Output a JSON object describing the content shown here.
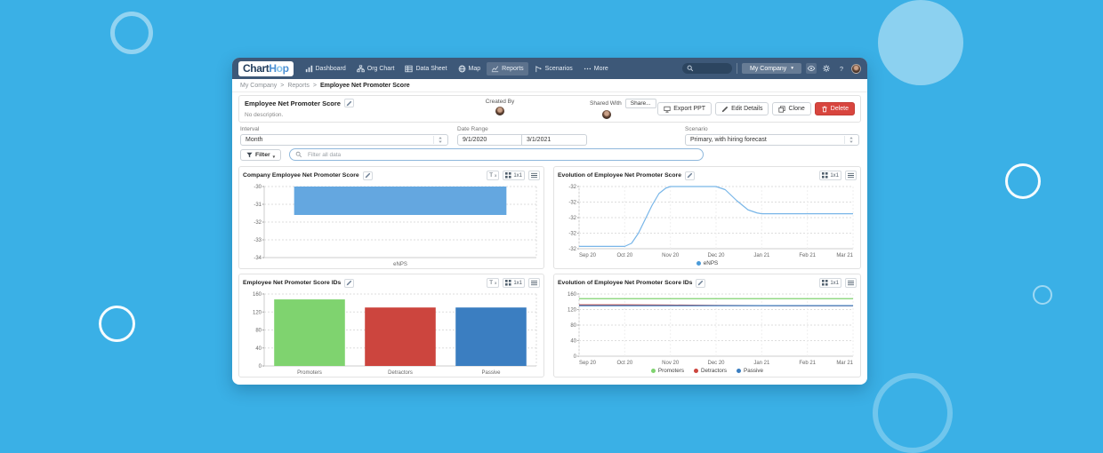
{
  "page": {
    "background_color": "#3ab0e6",
    "brand_navy": "#3d5878"
  },
  "navbar": {
    "logo_parts": [
      "Chart",
      "H",
      "o",
      "p"
    ],
    "items": [
      {
        "label": "Dashboard"
      },
      {
        "label": "Org Chart"
      },
      {
        "label": "Data Sheet"
      },
      {
        "label": "Map"
      },
      {
        "label": "Reports"
      },
      {
        "label": "Scenarios"
      },
      {
        "label": "More"
      }
    ],
    "company_menu": "My Company",
    "company_caret": "▾",
    "help_glyph": "?"
  },
  "breadcrumb": {
    "items": [
      "My Company",
      "Reports"
    ],
    "separator": ">",
    "current": "Employee Net Promoter Score"
  },
  "report_header": {
    "title": "Employee Net Promoter Score",
    "description": "No description.",
    "created_by_label": "Created By",
    "shared_with_label": "Shared With",
    "share_button": "Share...",
    "export_button": "Export PPT",
    "edit_button": "Edit Details",
    "clone_button": "Clone",
    "delete_button": "Delete",
    "delete_color": "#d8453e"
  },
  "controls": {
    "interval_label": "Interval",
    "interval_value": "Month",
    "date_range_label": "Date Range",
    "date_start": "9/1/2020",
    "date_end": "3/1/2021",
    "scenario_label": "Scenario",
    "scenario_value": "Primary, with hiring forecast",
    "filter_button": "Filter",
    "filter_caret": "▾",
    "filter_placeholder": "Filter all data"
  },
  "icons": {
    "tx_t": "T",
    "tx_x": "x"
  },
  "chart_data": [
    {
      "type": "bar",
      "title": "Company Employee Net Promoter Score",
      "toolbar": {
        "grid_label": "1x1",
        "has_label_filter": true
      },
      "ylim": [
        -30,
        -34
      ],
      "yticks": [
        {
          "v": -30,
          "label": "-30"
        },
        {
          "v": -31,
          "label": "-31"
        },
        {
          "v": -32,
          "label": "-32"
        },
        {
          "v": -33,
          "label": "-33"
        },
        {
          "v": -34,
          "label": "-34"
        }
      ],
      "categories": [
        "eNPS"
      ],
      "bars": [
        {
          "category": "eNPS",
          "v0": -30,
          "v1": -31.6,
          "value": -31.6,
          "color": "#64a7e0"
        }
      ]
    },
    {
      "type": "line",
      "title": "Evolution of Employee Net Promoter Score",
      "toolbar": {
        "grid_label": "1x1",
        "has_label_filter": false
      },
      "ylim": [
        -31.6,
        -32.4
      ],
      "yticks": [
        {
          "v": -31.6,
          "label": "-32"
        },
        {
          "v": -31.8,
          "label": "-32"
        },
        {
          "v": -32.0,
          "label": "-32"
        },
        {
          "v": -32.2,
          "label": "-32"
        },
        {
          "v": -32.4,
          "label": "-32"
        }
      ],
      "x_ticks": [
        "Sep 20",
        "Oct 20",
        "Nov 20",
        "Dec 20",
        "Jan 21",
        "Feb 21",
        "Mar 21"
      ],
      "xmax": 6,
      "series": [
        {
          "name": "eNPS",
          "color": "#79b6e8",
          "points": [
            [
              0,
              -32.37
            ],
            [
              1,
              -32.37
            ],
            [
              1.15,
              -32.33
            ],
            [
              1.3,
              -32.2
            ],
            [
              1.45,
              -32.02
            ],
            [
              1.6,
              -31.84
            ],
            [
              1.75,
              -31.69
            ],
            [
              1.9,
              -31.62
            ],
            [
              2,
              -31.6
            ],
            [
              3,
              -31.6
            ],
            [
              3.2,
              -31.64
            ],
            [
              3.45,
              -31.78
            ],
            [
              3.7,
              -31.9
            ],
            [
              3.9,
              -31.94
            ],
            [
              4,
              -31.95
            ],
            [
              6,
              -31.95
            ]
          ]
        }
      ],
      "legend": [
        {
          "label": "eNPS",
          "color": "#4a9ad8"
        }
      ]
    },
    {
      "type": "bar",
      "title": "Employee Net Promoter Score IDs",
      "toolbar": {
        "grid_label": "1x1",
        "has_label_filter": true
      },
      "ylim": [
        160,
        0
      ],
      "yticks": [
        {
          "v": 160,
          "label": "160"
        },
        {
          "v": 120,
          "label": "120"
        },
        {
          "v": 80,
          "label": "80"
        },
        {
          "v": 40,
          "label": "40"
        },
        {
          "v": 0,
          "label": "0"
        }
      ],
      "categories": [
        "Promoters",
        "Detractors",
        "Passive"
      ],
      "bars": [
        {
          "category": "Promoters",
          "v0": 0,
          "v1": 148,
          "value": 148,
          "color": "#7fd36f"
        },
        {
          "category": "Detractors",
          "v0": 0,
          "v1": 130,
          "value": 130,
          "color": "#cc453e"
        },
        {
          "category": "Passive",
          "v0": 0,
          "v1": 130,
          "value": 130,
          "color": "#3b7ec1"
        }
      ]
    },
    {
      "type": "line",
      "title": "Evolution of Employee Net Promoter Score IDs",
      "toolbar": {
        "grid_label": "1x1",
        "has_label_filter": false
      },
      "ylim": [
        160,
        0
      ],
      "yticks": [
        {
          "v": 160,
          "label": "160"
        },
        {
          "v": 120,
          "label": "120"
        },
        {
          "v": 80,
          "label": "80"
        },
        {
          "v": 40,
          "label": "40"
        },
        {
          "v": 0,
          "label": "0"
        }
      ],
      "x_ticks": [
        "Sep 20",
        "Oct 20",
        "Nov 20",
        "Dec 20",
        "Jan 21",
        "Feb 21",
        "Mar 21"
      ],
      "xmax": 6,
      "series": [
        {
          "name": "Promoters",
          "color": "#7fd36f",
          "points": [
            [
              0,
              148
            ],
            [
              6,
              148
            ]
          ]
        },
        {
          "name": "Detractors",
          "color": "#cc453e",
          "points": [
            [
              0,
              132
            ],
            [
              1,
              132
            ],
            [
              2,
              131.5
            ],
            [
              3,
              130.6
            ],
            [
              4,
              130.1
            ],
            [
              6,
              130
            ]
          ]
        },
        {
          "name": "Passive",
          "color": "#3b7ec1",
          "points": [
            [
              0,
              130
            ],
            [
              6,
              130
            ]
          ]
        }
      ],
      "legend": [
        {
          "label": "Promoters",
          "color": "#7fd36f"
        },
        {
          "label": "Detractors",
          "color": "#cc453e"
        },
        {
          "label": "Passive",
          "color": "#3b7ec1"
        }
      ]
    }
  ]
}
